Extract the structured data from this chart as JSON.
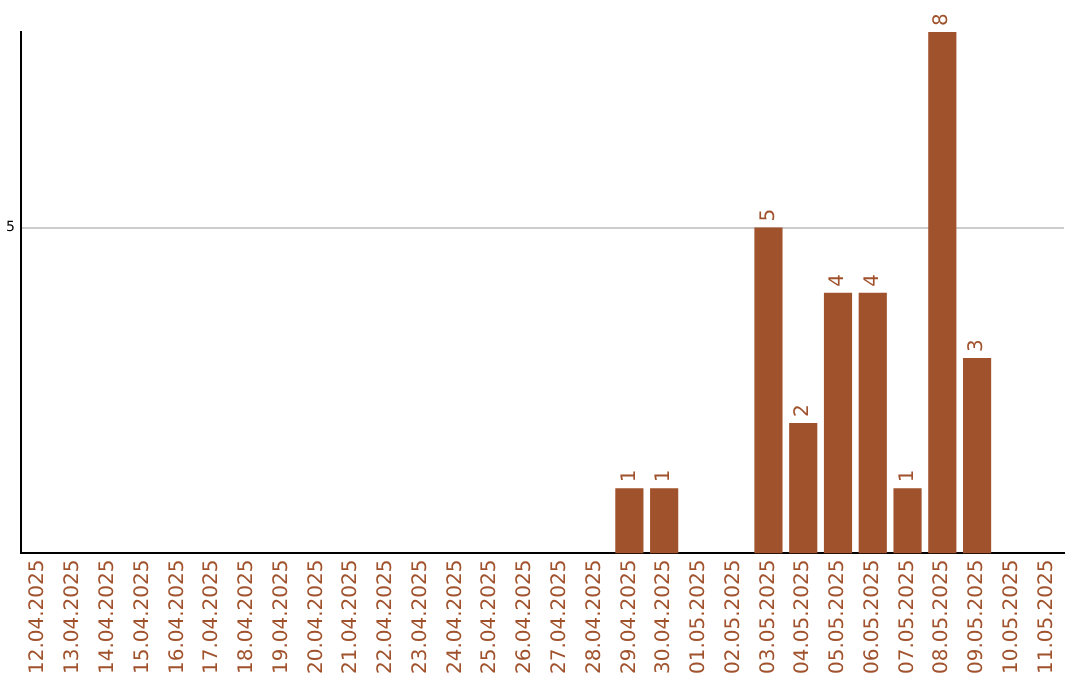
{
  "chart_data": {
    "type": "bar",
    "categories": [
      "12.04.2025",
      "13.04.2025",
      "14.04.2025",
      "15.04.2025",
      "16.04.2025",
      "17.04.2025",
      "18.04.2025",
      "19.04.2025",
      "20.04.2025",
      "21.04.2025",
      "22.04.2025",
      "23.04.2025",
      "24.04.2025",
      "25.04.2025",
      "26.04.2025",
      "27.04.2025",
      "28.04.2025",
      "29.04.2025",
      "30.04.2025",
      "01.05.2025",
      "02.05.2025",
      "03.05.2025",
      "04.05.2025",
      "05.05.2025",
      "06.05.2025",
      "07.05.2025",
      "08.05.2025",
      "09.05.2025",
      "10.05.2025",
      "11.05.2025"
    ],
    "values": [
      null,
      null,
      null,
      null,
      null,
      null,
      null,
      null,
      null,
      null,
      null,
      null,
      null,
      null,
      null,
      null,
      null,
      1,
      1,
      null,
      null,
      5,
      2,
      4,
      4,
      1,
      8,
      3,
      null,
      null
    ],
    "color": "#a0522d",
    "ylim": [
      0,
      8
    ],
    "yticks": [
      5
    ],
    "grid": "y",
    "data_labels": true
  }
}
